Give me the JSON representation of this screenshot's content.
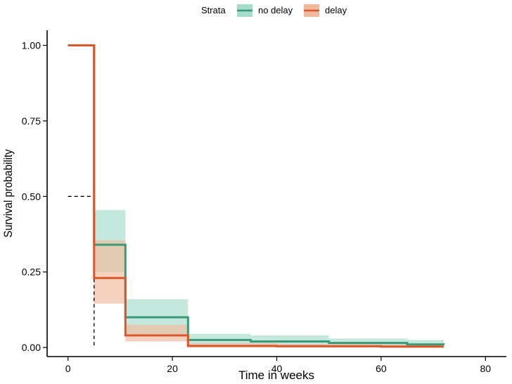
{
  "chart_data": {
    "type": "line",
    "step": true,
    "title": "",
    "xlabel": "Time in weeks",
    "ylabel": "Survival probability",
    "xlim": [
      -4,
      84
    ],
    "ylim": [
      -0.03,
      1.05
    ],
    "xticks": [
      0,
      20,
      40,
      60,
      80
    ],
    "yticks": [
      0.0,
      0.25,
      0.5,
      0.75,
      1.0
    ],
    "xtick_labels": [
      "0",
      "20",
      "40",
      "60",
      "80"
    ],
    "ytick_labels": [
      "0.00",
      "0.25",
      "0.50",
      "0.75",
      "1.00"
    ],
    "grid": false,
    "legend": {
      "title": "Strata",
      "position": "top",
      "entries": [
        "no delay",
        "delay"
      ]
    },
    "median_reference": {
      "survival": 0.5,
      "time": 5
    },
    "series": [
      {
        "name": "no delay",
        "color": "#3a9a78",
        "band_color": "#a6dccd",
        "x": [
          0,
          5,
          11,
          23,
          35,
          50,
          65,
          72
        ],
        "y": [
          1.0,
          0.34,
          0.1,
          0.025,
          0.02,
          0.015,
          0.01,
          0.008
        ],
        "lower": [
          1.0,
          0.25,
          0.045,
          0.008,
          0.006,
          0.004,
          0.003,
          0.002
        ],
        "upper": [
          1.0,
          0.455,
          0.16,
          0.045,
          0.04,
          0.03,
          0.025,
          0.02
        ]
      },
      {
        "name": "delay",
        "color": "#d9582a",
        "band_color": "#f0b99c",
        "x": [
          0,
          5,
          11,
          23,
          40,
          60,
          72
        ],
        "y": [
          1.0,
          0.23,
          0.04,
          0.005,
          0.004,
          0.003,
          0.003
        ],
        "lower": [
          1.0,
          0.145,
          0.02,
          0.001,
          0.001,
          0.001,
          0.001
        ],
        "upper": [
          1.0,
          0.355,
          0.075,
          0.015,
          0.012,
          0.01,
          0.01
        ]
      }
    ]
  }
}
